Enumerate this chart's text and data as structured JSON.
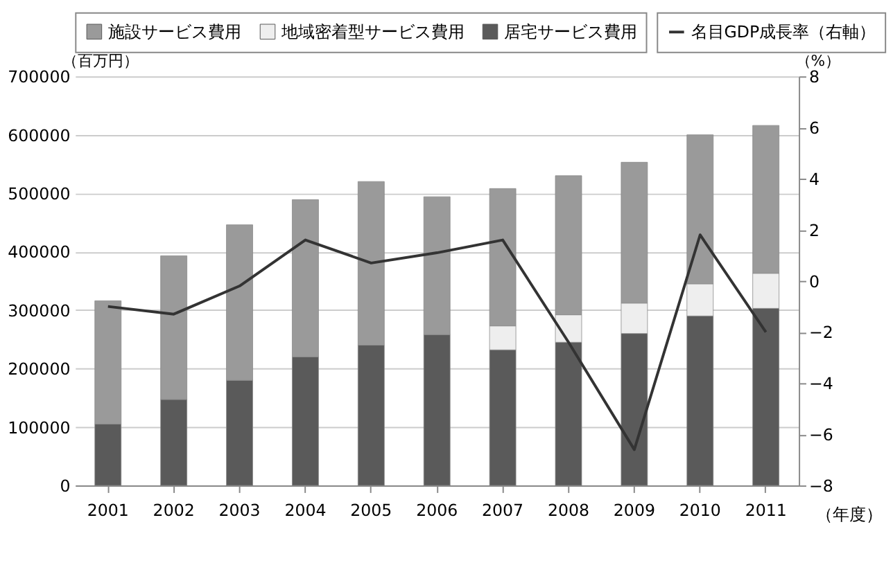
{
  "chart_data": {
    "type": "bar",
    "stacked": true,
    "categories": [
      "2001",
      "2002",
      "2003",
      "2004",
      "2005",
      "2006",
      "2007",
      "2008",
      "2009",
      "2010",
      "2011"
    ],
    "xlabel": "（年度）",
    "ylabel": "（百万円）",
    "y2label": "（%）",
    "ylim": [
      0,
      700000
    ],
    "yticks": [
      0,
      100000,
      200000,
      300000,
      400000,
      500000,
      600000,
      700000
    ],
    "y2lim": [
      -8,
      8
    ],
    "y2ticks": [
      -8,
      -6,
      -4,
      -2,
      0,
      2,
      4,
      6,
      8
    ],
    "grid": "y",
    "legend": "top",
    "series": [
      {
        "name": "居宅サービス費用",
        "color": "#5a5a5a",
        "values": [
          105000,
          147000,
          180000,
          220000,
          240000,
          258000,
          232000,
          245000,
          260000,
          290000,
          303000
        ]
      },
      {
        "name": "地域密着型サービス費用",
        "color": "#eeeeee",
        "values": [
          null,
          null,
          null,
          null,
          null,
          null,
          41000,
          47000,
          52000,
          55000,
          60000
        ]
      },
      {
        "name": "施設サービス費用",
        "color": "#9a9a9a",
        "values": [
          211000,
          246000,
          266000,
          269000,
          280000,
          236000,
          235000,
          238000,
          241000,
          255000,
          253000
        ]
      },
      {
        "name": "名目GDP成長率（右軸）",
        "type": "line",
        "axis": "y2",
        "color": "#333333",
        "values": [
          -1.0,
          -1.3,
          -0.2,
          1.6,
          0.7,
          1.1,
          1.6,
          -2.4,
          -6.6,
          1.8,
          -2.0
        ]
      }
    ]
  }
}
